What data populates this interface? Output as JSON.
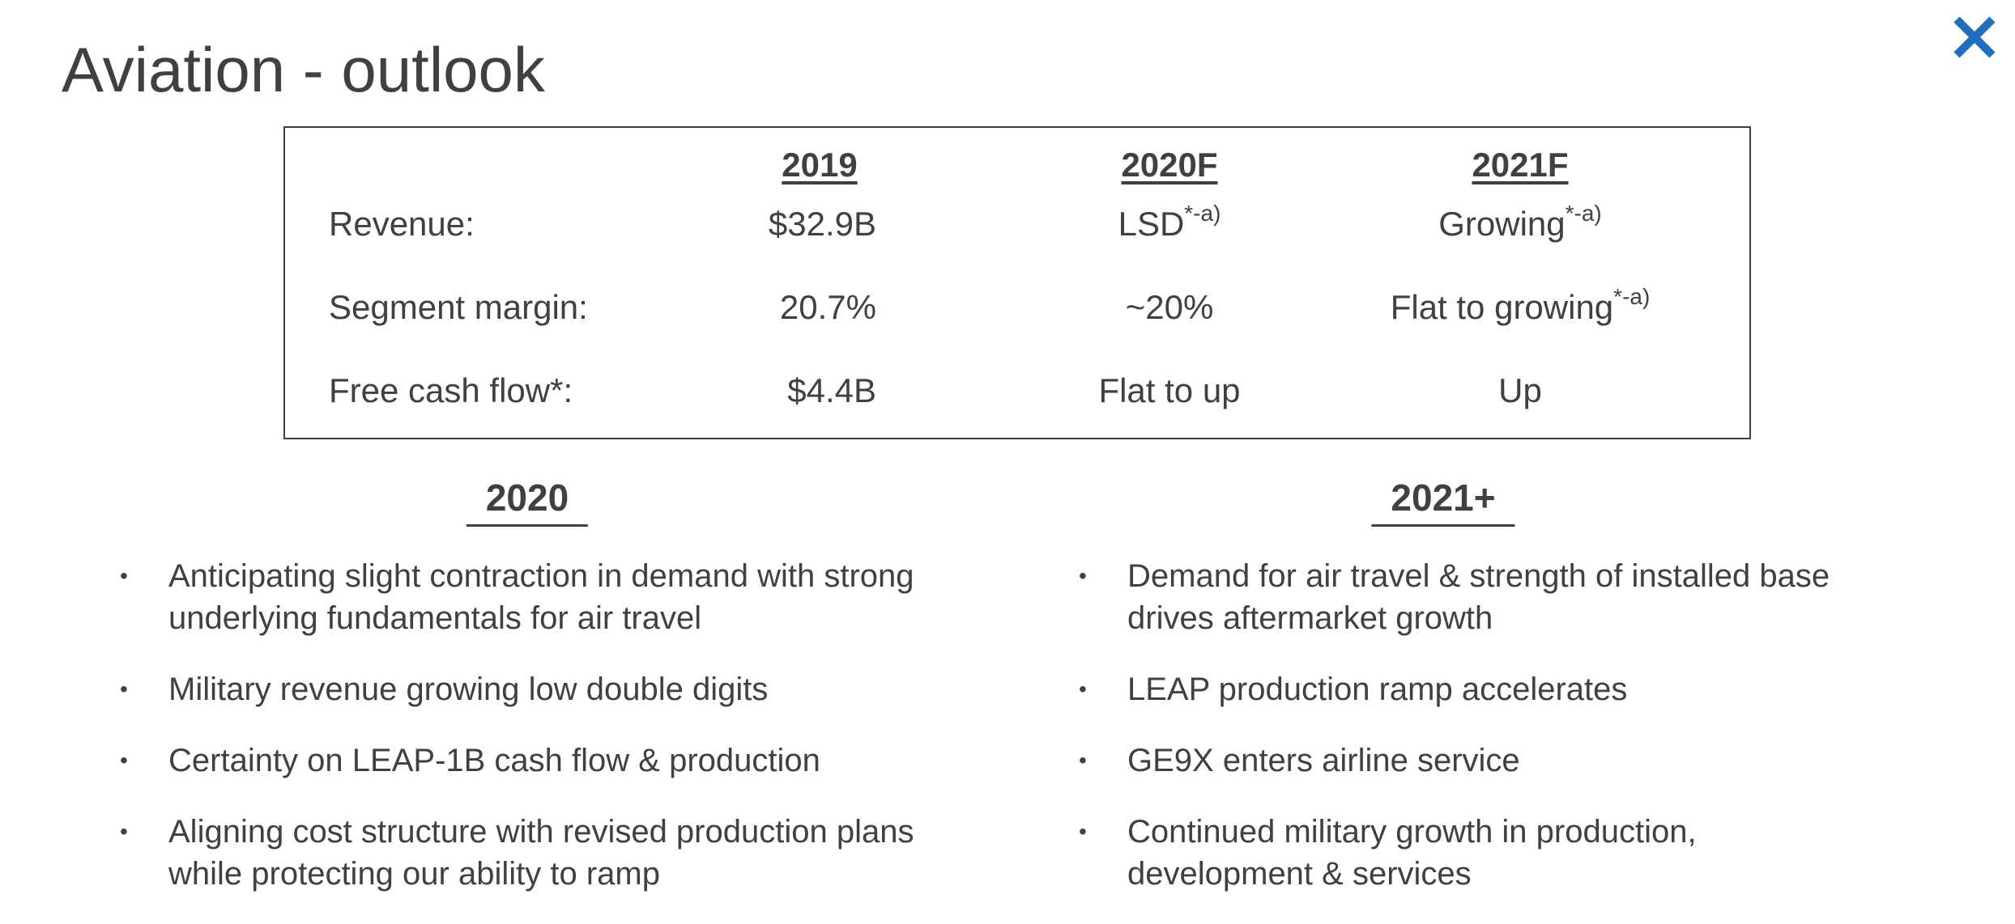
{
  "title": "Aviation - outlook",
  "brand": {
    "logo_icon": "x-cross-logo-icon",
    "logo_color": "#1f6fbf"
  },
  "outlook_table": {
    "headers": [
      "2019",
      "2020F",
      "2021F"
    ],
    "rows": [
      {
        "label": "Revenue:",
        "v2019": "$32.9B",
        "v2020": "LSD",
        "v2020_note": "*-a)",
        "v2021": "Growing",
        "v2021_note": "*-a)"
      },
      {
        "label": "Segment margin:",
        "v2019": "20.7%",
        "v2020": "~20%",
        "v2020_note": "",
        "v2021": "Flat to growing",
        "v2021_note": "*-a)"
      },
      {
        "label": "Free cash flow*:",
        "v2019": "$4.4B",
        "v2020": "Flat to up",
        "v2020_note": "",
        "v2021": "Up",
        "v2021_note": ""
      }
    ]
  },
  "section_2020": {
    "heading": "2020",
    "bullet_glyph": "•",
    "items": [
      "Anticipating slight contraction in demand with strong underlying fundamentals for air travel",
      "Military revenue growing low double digits",
      "Certainty on LEAP-1B cash flow & production",
      "Aligning cost structure with revised production plans while protecting our ability to ramp"
    ]
  },
  "section_2021": {
    "heading": "2021+",
    "bullet_glyph": "•",
    "items": [
      "Demand for air travel & strength of installed base drives aftermarket growth",
      "LEAP production ramp accelerates",
      "GE9X enters airline service",
      "Continued military growth in production, development & services"
    ]
  }
}
